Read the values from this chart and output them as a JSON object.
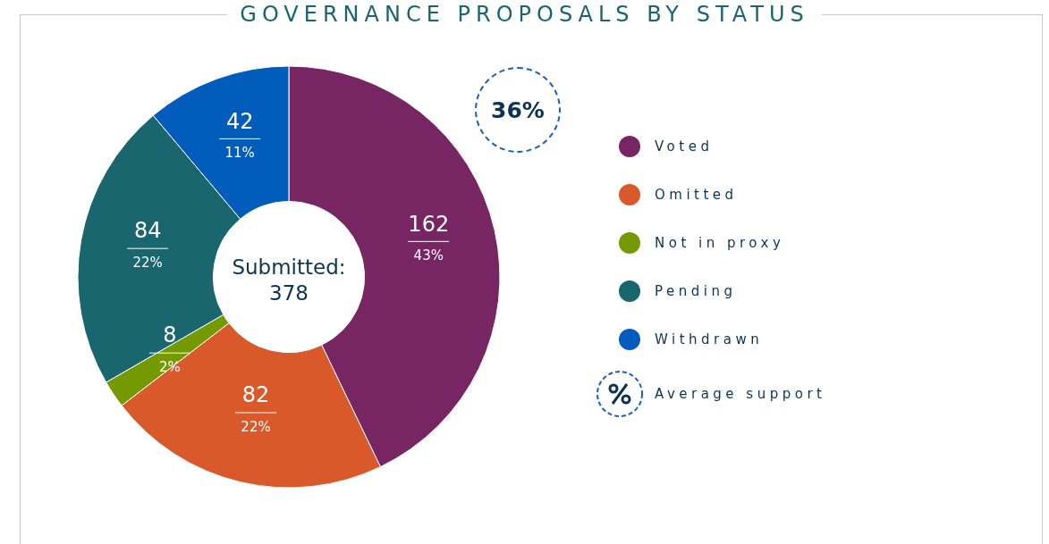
{
  "chart_data": {
    "type": "donut",
    "title": "GOVERNANCE PROPOSALS BY STATUS",
    "categories": [
      "Voted",
      "Omitted",
      "Not in proxy",
      "Pending",
      "Withdrawn"
    ],
    "values": [
      162,
      82,
      8,
      84,
      42
    ],
    "colors": [
      "#772663",
      "#d9592b",
      "#759900",
      "#19666e",
      "#025cbc"
    ],
    "value_labels": [
      "162\n43%",
      "82\n22%",
      "8\n2%",
      "84\n22%",
      "42\n11%"
    ],
    "legend": "right",
    "annotations": [
      "Submitted: 378",
      "36%",
      "Average support"
    ]
  }
}
